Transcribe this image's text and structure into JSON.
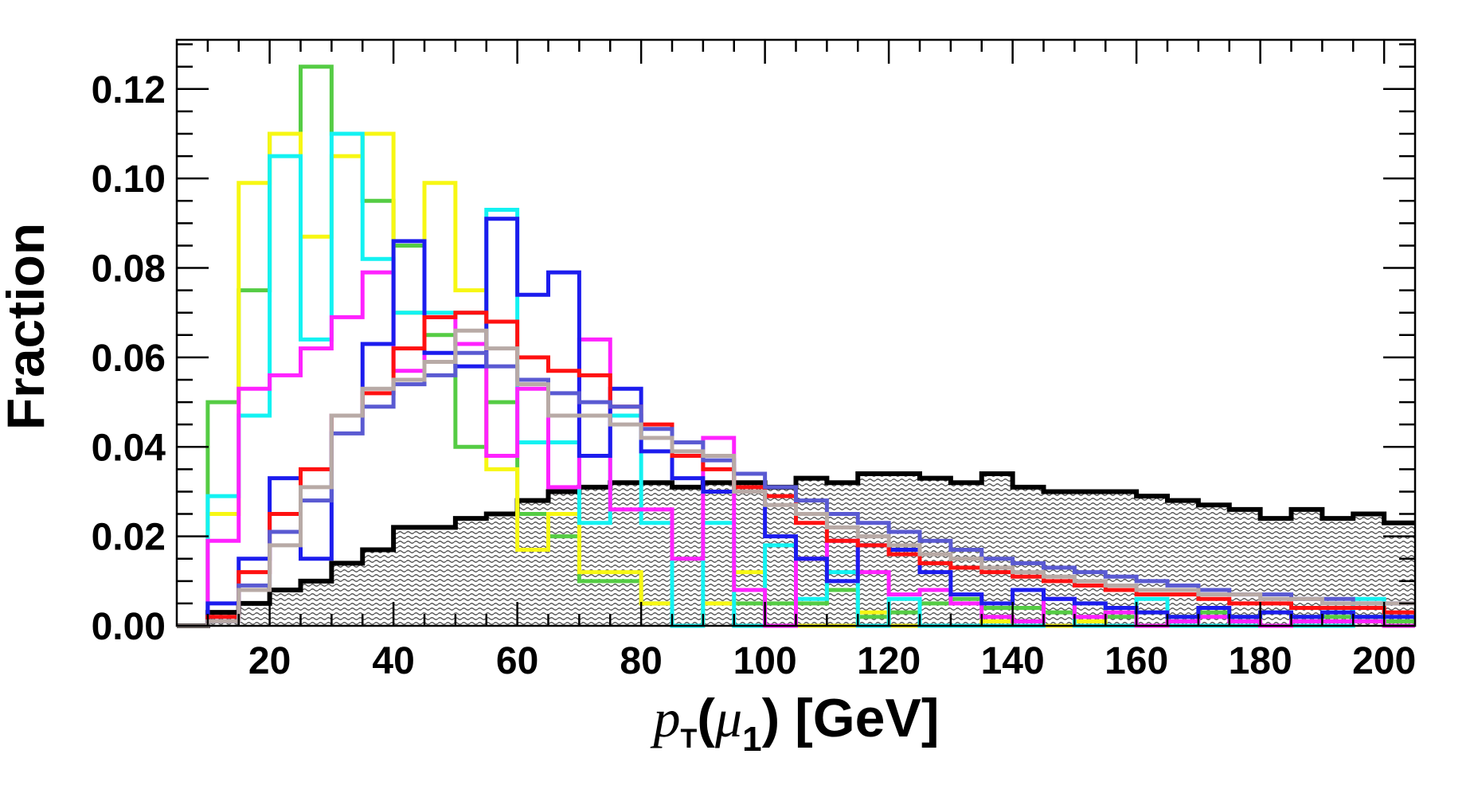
{
  "chart_data": {
    "type": "histogram",
    "xlabel_parts": {
      "symbol": "p",
      "symbol_sub": "T",
      "open": "(",
      "particle": "μ",
      "particle_sub": "1",
      "close": ")",
      "units": "[GeV]"
    },
    "ylabel": "Fraction",
    "xlim": [
      5,
      205
    ],
    "ylim": [
      0,
      0.131
    ],
    "bin_edges": [
      5,
      10,
      15,
      20,
      25,
      30,
      35,
      40,
      45,
      50,
      55,
      60,
      65,
      70,
      75,
      80,
      85,
      90,
      95,
      100,
      105,
      110,
      115,
      120,
      125,
      130,
      135,
      140,
      145,
      150,
      155,
      160,
      165,
      170,
      175,
      180,
      185,
      190,
      195,
      200,
      205
    ],
    "x_ticks": [
      20,
      40,
      60,
      80,
      100,
      120,
      140,
      160,
      180,
      200
    ],
    "x_tick_labels": [
      "20",
      "40",
      "60",
      "80",
      "100",
      "120",
      "140",
      "160",
      "180",
      "200"
    ],
    "y_ticks": [
      0,
      0.02,
      0.04,
      0.06,
      0.08,
      0.1,
      0.12
    ],
    "y_tick_labels": [
      "0.00",
      "0.02",
      "0.04",
      "0.06",
      "0.08",
      "0.10",
      "0.12"
    ],
    "background": {
      "name": "background",
      "color": "#000000",
      "fill": "hatched-gray",
      "values": [
        0,
        0.003,
        0.005,
        0.008,
        0.01,
        0.014,
        0.017,
        0.022,
        0.022,
        0.024,
        0.025,
        0.028,
        0.03,
        0.031,
        0.032,
        0.032,
        0.031,
        0.032,
        0.032,
        0.031,
        0.033,
        0.032,
        0.034,
        0.034,
        0.033,
        0.032,
        0.034,
        0.031,
        0.03,
        0.03,
        0.03,
        0.029,
        0.028,
        0.027,
        0.026,
        0.024,
        0.026,
        0.024,
        0.025,
        0.023
      ]
    },
    "series": [
      {
        "name": "green",
        "color": "#55cc44",
        "values": [
          0,
          0.05,
          0.075,
          0.11,
          0.125,
          0.11,
          0.095,
          0.085,
          0.065,
          0.04,
          0.05,
          0.025,
          0.02,
          0.01,
          0.01,
          0.005,
          0.0,
          0.005,
          0.005,
          0.005,
          0.005,
          0.008,
          0.002,
          0.003,
          0.005,
          0.006,
          0.004,
          0.004,
          0.003,
          0.005,
          0.002,
          0.003,
          0.002,
          0.003,
          0.002,
          0.003,
          0.002,
          0.002,
          0.002,
          0.001
        ]
      },
      {
        "name": "yellow",
        "color": "#f7f713",
        "values": [
          0,
          0.025,
          0.099,
          0.11,
          0.087,
          0.105,
          0.11,
          0.07,
          0.099,
          0.075,
          0.035,
          0.017,
          0.025,
          0.012,
          0.012,
          0.005,
          0.0,
          0.005,
          0.012,
          0.0,
          0.0,
          0.0,
          0.003,
          0.0,
          0.0,
          0.0,
          0.001,
          0.0,
          0.0,
          0.001,
          0.0,
          0.0,
          0.0,
          0.0,
          0.0,
          0.0,
          0.0,
          0.0,
          0.001,
          0.0
        ]
      },
      {
        "name": "cyan",
        "color": "#13f2f2",
        "values": [
          0,
          0.029,
          0.047,
          0.105,
          0.064,
          0.11,
          0.082,
          0.07,
          0.07,
          0.07,
          0.093,
          0.041,
          0.041,
          0.023,
          0.047,
          0.023,
          0.0,
          0.023,
          0.0,
          0.018,
          0.006,
          0.012,
          0.0,
          0.006,
          0.0,
          0.0,
          0.0,
          0.0,
          0.006,
          0.0,
          0.0,
          0.006,
          0.0,
          0.0,
          0.0,
          0.0,
          0.0,
          0.0,
          0.006,
          0.0
        ]
      },
      {
        "name": "magenta",
        "color": "#ff22ff",
        "values": [
          0,
          0.019,
          0.053,
          0.056,
          0.062,
          0.069,
          0.079,
          0.057,
          0.069,
          0.063,
          0.038,
          0.053,
          0.031,
          0.064,
          0.026,
          0.026,
          0.015,
          0.042,
          0.008,
          0.0,
          0.015,
          0.019,
          0.012,
          0.007,
          0.008,
          0.005,
          0.002,
          0.001,
          0.006,
          0.002,
          0.003,
          0.0,
          0.001,
          0.002,
          0.001,
          0.0,
          0.001,
          0.001,
          0.001,
          0.0
        ]
      },
      {
        "name": "blue",
        "color": "#1c1cee",
        "values": [
          0,
          0.005,
          0.015,
          0.033,
          0.015,
          0.047,
          0.063,
          0.086,
          0.061,
          0.058,
          0.091,
          0.074,
          0.079,
          0.038,
          0.053,
          0.039,
          0.033,
          0.03,
          0.03,
          0.02,
          0.015,
          0.01,
          0.018,
          0.017,
          0.012,
          0.007,
          0.005,
          0.008,
          0.006,
          0.005,
          0.004,
          0.003,
          0.002,
          0.004,
          0.002,
          0.003,
          0.002,
          0.003,
          0.002,
          0.002
        ]
      },
      {
        "name": "red",
        "color": "#ff1111",
        "values": [
          0,
          0.002,
          0.012,
          0.025,
          0.035,
          0.047,
          0.052,
          0.062,
          0.069,
          0.07,
          0.068,
          0.06,
          0.057,
          0.056,
          0.049,
          0.045,
          0.038,
          0.035,
          0.031,
          0.029,
          0.023,
          0.019,
          0.018,
          0.016,
          0.014,
          0.013,
          0.012,
          0.011,
          0.01,
          0.009,
          0.008,
          0.007,
          0.007,
          0.006,
          0.005,
          0.005,
          0.004,
          0.004,
          0.004,
          0.003
        ]
      },
      {
        "name": "slate-blue",
        "color": "#5a5ad2",
        "values": [
          0,
          0.001,
          0.009,
          0.021,
          0.028,
          0.043,
          0.049,
          0.054,
          0.056,
          0.061,
          0.058,
          0.055,
          0.052,
          0.05,
          0.049,
          0.044,
          0.041,
          0.037,
          0.034,
          0.031,
          0.028,
          0.025,
          0.023,
          0.021,
          0.019,
          0.017,
          0.015,
          0.014,
          0.013,
          0.012,
          0.011,
          0.01,
          0.009,
          0.008,
          0.007,
          0.007,
          0.006,
          0.006,
          0.005,
          0.005
        ]
      },
      {
        "name": "gray",
        "color": "#b8aaa6",
        "values": [
          0,
          0.001,
          0.008,
          0.018,
          0.031,
          0.047,
          0.053,
          0.055,
          0.059,
          0.066,
          0.062,
          0.054,
          0.047,
          0.047,
          0.045,
          0.042,
          0.039,
          0.038,
          0.03,
          0.027,
          0.025,
          0.022,
          0.02,
          0.018,
          0.016,
          0.015,
          0.013,
          0.012,
          0.011,
          0.01,
          0.009,
          0.008,
          0.008,
          0.007,
          0.007,
          0.006,
          0.006,
          0.005,
          0.005,
          0.005
        ]
      }
    ]
  }
}
